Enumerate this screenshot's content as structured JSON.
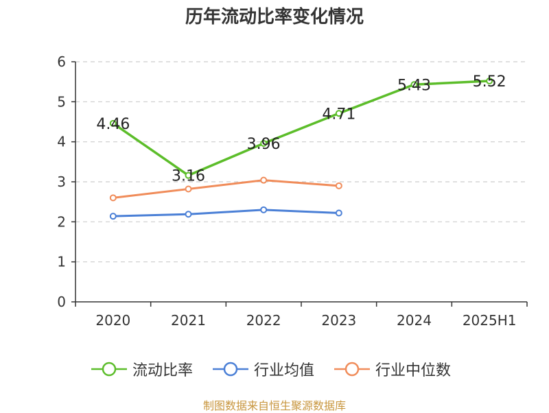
{
  "title": "历年流动比率变化情况",
  "source": "制图数据来自恒生聚源数据库",
  "chart_data": {
    "type": "line",
    "categories": [
      "2020",
      "2021",
      "2022",
      "2023",
      "2024",
      "2025H1"
    ],
    "ylim": [
      0,
      6
    ],
    "yticks": [
      0,
      1,
      2,
      3,
      4,
      5,
      6
    ],
    "grid": true,
    "legend_position": "bottom",
    "series": [
      {
        "name": "流动比率",
        "color": "#5cbd2a",
        "values": [
          4.46,
          3.16,
          3.96,
          4.71,
          5.43,
          5.52
        ],
        "labels": [
          "4.46",
          "3.16",
          "3.96",
          "4.71",
          "5.43",
          "5.52"
        ]
      },
      {
        "name": "行业均值",
        "color": "#4a7fd6",
        "values": [
          2.14,
          2.19,
          2.3,
          2.22,
          null,
          null
        ]
      },
      {
        "name": "行业中位数",
        "color": "#f08c5a",
        "values": [
          2.6,
          2.82,
          3.04,
          2.9,
          null,
          null
        ]
      }
    ]
  }
}
